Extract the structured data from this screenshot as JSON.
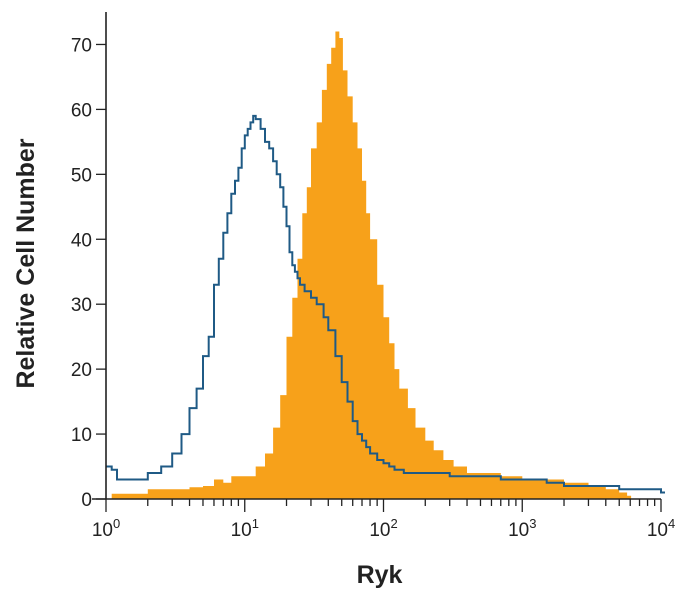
{
  "chart_data": {
    "type": "histogram",
    "xlabel": "Ryk",
    "ylabel": "Relative Cell Number",
    "x_scale": "log",
    "xlim": [
      1,
      10000
    ],
    "ylim": [
      0,
      75
    ],
    "grid": false,
    "x_tick_labels": [
      {
        "value": 1,
        "base": "10",
        "exp": "0"
      },
      {
        "value": 10,
        "base": "10",
        "exp": "1"
      },
      {
        "value": 100,
        "base": "10",
        "exp": "2"
      },
      {
        "value": 1000,
        "base": "10",
        "exp": "3"
      },
      {
        "value": 10000,
        "base": "10",
        "exp": "4"
      }
    ],
    "y_ticks": [
      0,
      10,
      20,
      30,
      40,
      50,
      60,
      70
    ],
    "y_tick_labels": [
      "0",
      "10",
      "20",
      "30",
      "40",
      "50",
      "60",
      "70"
    ],
    "colors": {
      "filled": "#f7a11a",
      "outline": "#1f5a85",
      "axis": "#222222"
    },
    "series": [
      {
        "style": "filled",
        "color": "#f7a11a",
        "x": [
          1.1,
          1.5,
          2,
          3,
          4,
          5,
          6,
          7,
          8,
          10,
          12,
          14,
          16,
          18,
          20,
          22,
          24,
          26,
          28,
          30,
          33,
          36,
          39,
          42,
          45,
          48,
          51,
          55,
          60,
          65,
          70,
          75,
          80,
          90,
          100,
          110,
          120,
          130,
          150,
          170,
          200,
          230,
          270,
          320,
          400,
          500,
          700,
          1000,
          1500,
          2000,
          3000,
          4000,
          5000,
          5700
        ],
        "y": [
          0.8,
          0.8,
          1.5,
          1.5,
          1.8,
          2,
          3,
          2.5,
          3.5,
          3.5,
          5,
          7,
          11,
          16,
          25,
          31,
          37,
          44,
          48,
          54,
          58,
          63,
          67,
          69.5,
          72,
          71,
          66,
          62,
          58,
          54,
          49,
          44,
          40,
          33,
          28,
          24,
          20,
          17,
          14,
          11,
          9,
          7.5,
          6,
          5,
          4,
          4,
          3.5,
          3,
          3,
          2.5,
          2,
          1.5,
          1,
          0.5
        ]
      },
      {
        "style": "outline",
        "color": "#1f5a85",
        "x": [
          1,
          1.1,
          1.2,
          1.5,
          2,
          2.5,
          3,
          3.5,
          4,
          4.5,
          5,
          5.5,
          6,
          6.5,
          7,
          7.5,
          8,
          8.5,
          9,
          9.5,
          10,
          10.5,
          11,
          11.5,
          12,
          13,
          14,
          15,
          16,
          17,
          18,
          19,
          20,
          21,
          22,
          23,
          24,
          25,
          27,
          30,
          33,
          37,
          40,
          45,
          50,
          55,
          60,
          65,
          70,
          75,
          80,
          90,
          100,
          110,
          120,
          140,
          160,
          200,
          250,
          300,
          400,
          500,
          700,
          1000,
          1500,
          2000,
          3000,
          5000,
          7000,
          10000
        ],
        "y": [
          5,
          4.5,
          3,
          3,
          4,
          5,
          7,
          10,
          14,
          17,
          22,
          25,
          33,
          37,
          41,
          44,
          47,
          49,
          51,
          54,
          56,
          57,
          58,
          59,
          58.5,
          57,
          55,
          54,
          52,
          50,
          48,
          45,
          42,
          38,
          36,
          35,
          34,
          33,
          32,
          31,
          30,
          28,
          26,
          22,
          18,
          15,
          12,
          10,
          9,
          8,
          7,
          6,
          5.5,
          5,
          4.5,
          4,
          4,
          4,
          4,
          3.5,
          3.5,
          3.5,
          3,
          3,
          2.5,
          2,
          2,
          1.5,
          1.5,
          1
        ]
      }
    ]
  }
}
